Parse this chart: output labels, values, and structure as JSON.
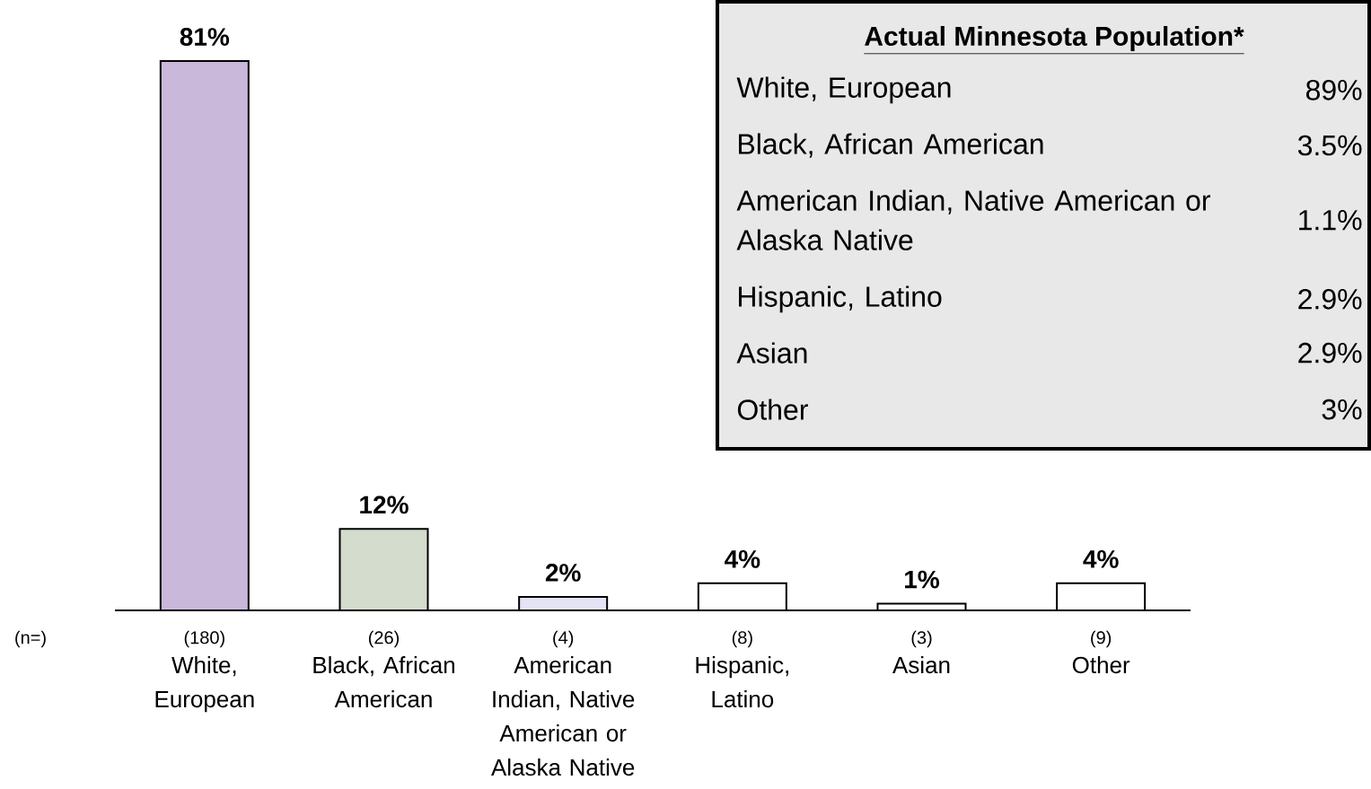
{
  "chart_data": [
    {
      "type": "bar",
      "categories": [
        "White, European",
        "Black, African American",
        "American Indian, Native American or Alaska Native",
        "Hispanic, Latino",
        "Asian",
        "Other"
      ],
      "values": [
        81,
        12,
        2,
        4,
        1,
        4
      ],
      "value_labels": [
        "81%",
        "12%",
        "2%",
        "4%",
        "1%",
        "4%"
      ],
      "colors": [
        "#c9b8da",
        "#d3dccd",
        "#e4e4f6",
        "#ffffff",
        "#ffffff",
        "#ffffff"
      ],
      "annotations": [
        "(n=)",
        "(180)",
        "(26)",
        "(4)",
        "(8)",
        "(3)",
        "(9)"
      ]
    },
    {
      "type": "other",
      "title": "Actual Minnesota Population*",
      "annotations": [
        "White, European",
        "89%",
        "Black, African American",
        "3.5%",
        "American Indian, Native American or Alaska Native",
        "1.1%",
        "Hispanic, Latino",
        "2.9%",
        "Asian",
        "2.9%",
        "Other",
        "3%"
      ]
    }
  ]
}
